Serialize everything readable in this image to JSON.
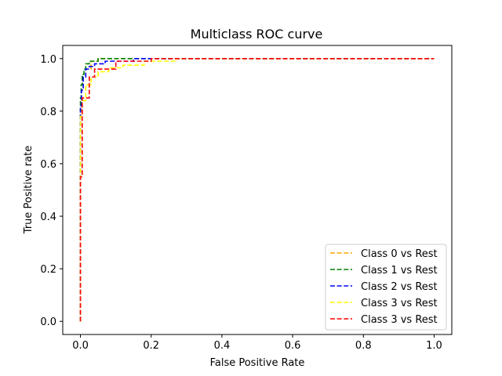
{
  "chart_data": {
    "type": "line",
    "title": "Multiclass ROC curve",
    "xlabel": "False Positive Rate",
    "ylabel": "True Positive rate",
    "xlim": [
      -0.05,
      1.05
    ],
    "ylim": [
      -0.05,
      1.05
    ],
    "xticks": [
      0.0,
      0.2,
      0.4,
      0.6,
      0.8,
      1.0
    ],
    "yticks": [
      0.0,
      0.2,
      0.4,
      0.6,
      0.8,
      1.0
    ],
    "tick_labels_x": [
      "0.0",
      "0.2",
      "0.4",
      "0.6",
      "0.8",
      "1.0"
    ],
    "tick_labels_y": [
      "0.0",
      "0.2",
      "0.4",
      "0.6",
      "0.8",
      "1.0"
    ],
    "legend_position": "bottom-right",
    "series": [
      {
        "name": "Class 0 vs Rest",
        "color": "#ffa500",
        "x": [
          0,
          0,
          0.003,
          0.003,
          0.008,
          0.008,
          0.015,
          0.015,
          0.03,
          0.03,
          0.05,
          0.05,
          1.0
        ],
        "y": [
          0,
          0.8,
          0.8,
          0.88,
          0.88,
          0.93,
          0.93,
          0.96,
          0.96,
          0.99,
          0.99,
          1.0,
          1.0
        ]
      },
      {
        "name": "Class 1 vs Rest",
        "color": "#008000",
        "x": [
          0,
          0,
          0.002,
          0.002,
          0.005,
          0.005,
          0.01,
          0.01,
          0.015,
          0.015,
          0.025,
          0.025,
          0.05,
          0.05,
          1.0
        ],
        "y": [
          0,
          0.85,
          0.85,
          0.9,
          0.9,
          0.94,
          0.94,
          0.96,
          0.96,
          0.98,
          0.98,
          0.99,
          0.99,
          1.0,
          1.0
        ]
      },
      {
        "name": "Class 2 vs Rest",
        "color": "#0000ff",
        "x": [
          0,
          0,
          0.003,
          0.003,
          0.008,
          0.008,
          0.015,
          0.015,
          0.025,
          0.025,
          0.04,
          0.04,
          0.07,
          0.07,
          0.15,
          0.15,
          1.0
        ],
        "y": [
          0,
          0.82,
          0.82,
          0.88,
          0.88,
          0.93,
          0.93,
          0.96,
          0.96,
          0.97,
          0.97,
          0.98,
          0.98,
          0.99,
          0.99,
          1.0,
          1.0
        ]
      },
      {
        "name": "Class 3 vs Rest",
        "color": "#ffff00",
        "x": [
          0,
          0,
          0.005,
          0.005,
          0.015,
          0.015,
          0.03,
          0.03,
          0.05,
          0.05,
          0.08,
          0.08,
          0.12,
          0.12,
          0.18,
          0.18,
          0.27,
          0.27,
          1.0
        ],
        "y": [
          0,
          0.78,
          0.78,
          0.84,
          0.84,
          0.9,
          0.9,
          0.93,
          0.93,
          0.95,
          0.95,
          0.965,
          0.965,
          0.975,
          0.975,
          0.99,
          0.99,
          1.0,
          1.0
        ]
      },
      {
        "name": "Class 3 vs Rest",
        "color": "#ff0000",
        "x": [
          0,
          0,
          0.005,
          0.005,
          0.025,
          0.025,
          0.04,
          0.04,
          0.1,
          0.1,
          0.2,
          0.2,
          1.0
        ],
        "y": [
          0,
          0.55,
          0.55,
          0.85,
          0.85,
          0.93,
          0.93,
          0.96,
          0.96,
          0.99,
          0.99,
          1.0,
          1.0
        ]
      }
    ]
  }
}
